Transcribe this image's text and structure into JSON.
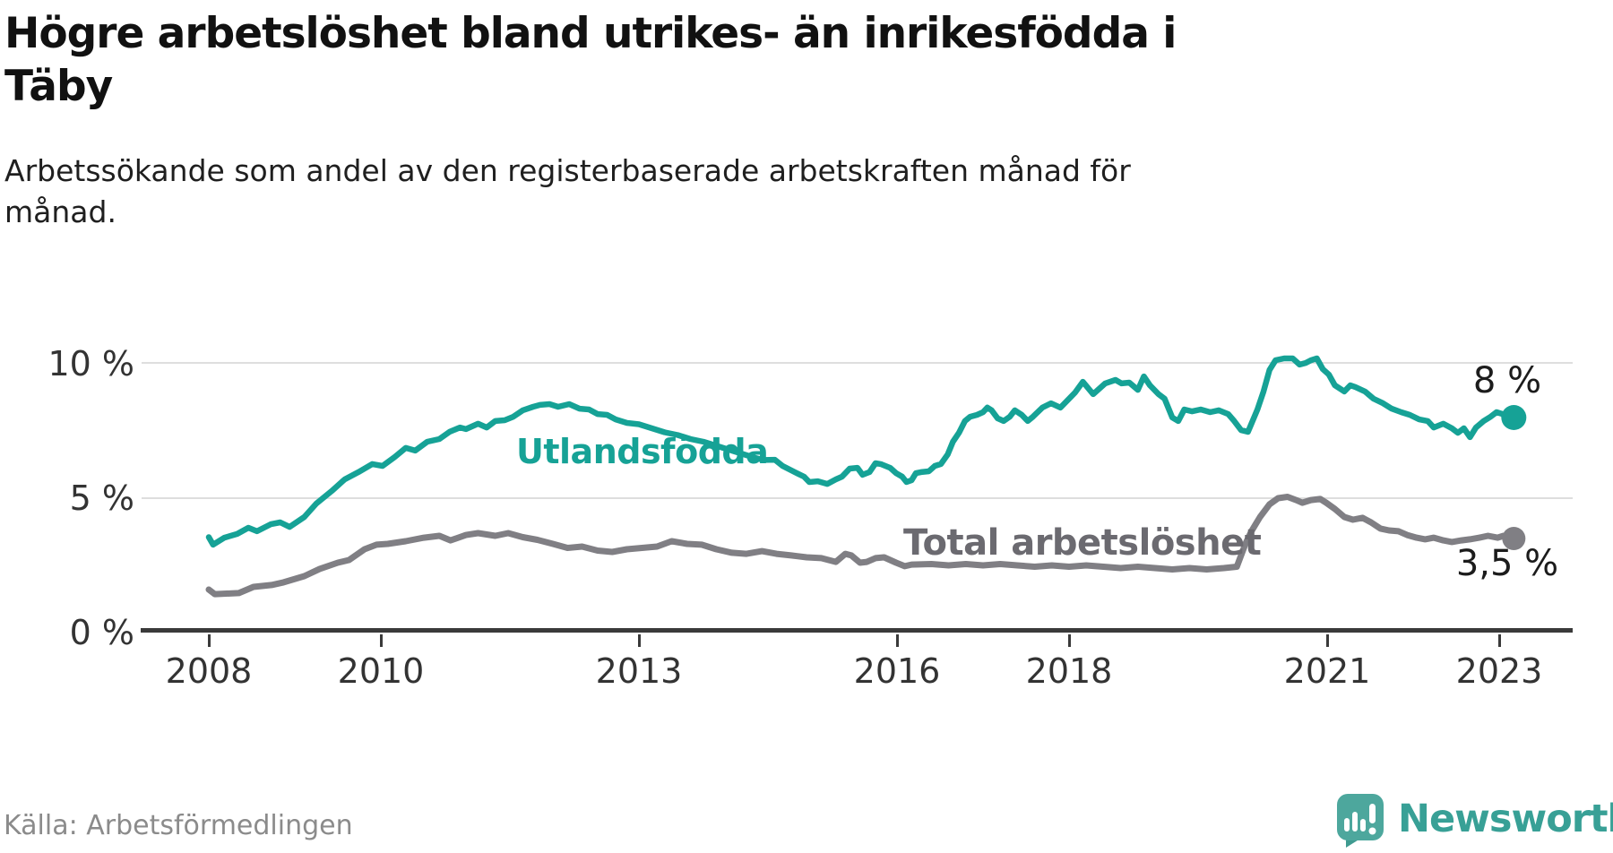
{
  "header": {
    "title_lines": [
      "Högre arbetslöshet bland utrikes- än inrikesfödda i",
      "Täby"
    ],
    "subtitle_lines": [
      "Arbetssökande som andel av den registerbaserade arbetskraften månad för",
      "månad."
    ]
  },
  "footer": {
    "source": "Källa: Arbetsförmedlingen",
    "brand": "Newsworthy",
    "brand_color": "#38a096",
    "brand_icon_color": "#4da79d"
  },
  "chart_data": {
    "type": "line",
    "unit": "%",
    "grid": "horizontal-on",
    "legend_position": "inline-labels",
    "x_axis": {
      "range_years": [
        2007.2,
        2023.9
      ],
      "ticks": [
        {
          "t": 2008,
          "label": "2008"
        },
        {
          "t": 2010,
          "label": "2010"
        },
        {
          "t": 2013,
          "label": "2013"
        },
        {
          "t": 2016,
          "label": "2016"
        },
        {
          "t": 2018,
          "label": "2018"
        },
        {
          "t": 2021,
          "label": "2021"
        },
        {
          "t": 2023,
          "label": "2023"
        }
      ]
    },
    "y_axis": {
      "range": [
        0,
        10.5
      ],
      "ticks": [
        {
          "v": 10,
          "label": "10 %"
        },
        {
          "v": 5,
          "label": "5 %"
        },
        {
          "v": 0,
          "label": "0 %"
        }
      ]
    },
    "series": [
      {
        "name": "Utlandsfödda",
        "color": "#16a296",
        "end_label": "8 %",
        "end_value": 8.0,
        "points": [
          [
            2008.0,
            3.55
          ],
          [
            2008.05,
            3.27
          ],
          [
            2008.18,
            3.53
          ],
          [
            2008.33,
            3.67
          ],
          [
            2008.46,
            3.9
          ],
          [
            2008.56,
            3.77
          ],
          [
            2008.72,
            4.03
          ],
          [
            2008.83,
            4.1
          ],
          [
            2008.94,
            3.93
          ],
          [
            2009.11,
            4.3
          ],
          [
            2009.25,
            4.8
          ],
          [
            2009.43,
            5.27
          ],
          [
            2009.58,
            5.7
          ],
          [
            2009.74,
            5.97
          ],
          [
            2009.9,
            6.27
          ],
          [
            2010.02,
            6.2
          ],
          [
            2010.16,
            6.53
          ],
          [
            2010.29,
            6.87
          ],
          [
            2010.4,
            6.77
          ],
          [
            2010.54,
            7.1
          ],
          [
            2010.68,
            7.2
          ],
          [
            2010.8,
            7.47
          ],
          [
            2010.92,
            7.63
          ],
          [
            2010.99,
            7.57
          ],
          [
            2011.13,
            7.77
          ],
          [
            2011.23,
            7.63
          ],
          [
            2011.33,
            7.87
          ],
          [
            2011.44,
            7.9
          ],
          [
            2011.54,
            8.03
          ],
          [
            2011.65,
            8.27
          ],
          [
            2011.77,
            8.4
          ],
          [
            2011.85,
            8.47
          ],
          [
            2011.96,
            8.5
          ],
          [
            2012.06,
            8.4
          ],
          [
            2012.19,
            8.5
          ],
          [
            2012.31,
            8.33
          ],
          [
            2012.42,
            8.3
          ],
          [
            2012.52,
            8.13
          ],
          [
            2012.63,
            8.1
          ],
          [
            2012.73,
            7.93
          ],
          [
            2012.86,
            7.8
          ],
          [
            2013.0,
            7.75
          ],
          [
            2013.15,
            7.6
          ],
          [
            2013.3,
            7.45
          ],
          [
            2013.45,
            7.35
          ],
          [
            2013.6,
            7.2
          ],
          [
            2013.75,
            7.1
          ],
          [
            2013.9,
            6.95
          ],
          [
            2014.05,
            6.8
          ],
          [
            2014.2,
            6.65
          ],
          [
            2014.35,
            6.5
          ],
          [
            2014.45,
            6.42
          ],
          [
            2014.58,
            6.43
          ],
          [
            2014.67,
            6.2
          ],
          [
            2014.81,
            5.97
          ],
          [
            2014.92,
            5.8
          ],
          [
            2014.98,
            5.6
          ],
          [
            2015.08,
            5.63
          ],
          [
            2015.19,
            5.53
          ],
          [
            2015.29,
            5.7
          ],
          [
            2015.36,
            5.8
          ],
          [
            2015.45,
            6.1
          ],
          [
            2015.54,
            6.13
          ],
          [
            2015.6,
            5.87
          ],
          [
            2015.68,
            5.97
          ],
          [
            2015.75,
            6.3
          ],
          [
            2015.81,
            6.27
          ],
          [
            2015.92,
            6.13
          ],
          [
            2015.99,
            5.93
          ],
          [
            2016.06,
            5.8
          ],
          [
            2016.11,
            5.6
          ],
          [
            2016.17,
            5.67
          ],
          [
            2016.22,
            5.93
          ],
          [
            2016.28,
            5.97
          ],
          [
            2016.37,
            6.0
          ],
          [
            2016.44,
            6.2
          ],
          [
            2016.51,
            6.27
          ],
          [
            2016.59,
            6.63
          ],
          [
            2016.65,
            7.1
          ],
          [
            2016.72,
            7.43
          ],
          [
            2016.79,
            7.87
          ],
          [
            2016.85,
            8.03
          ],
          [
            2016.93,
            8.1
          ],
          [
            2017.0,
            8.2
          ],
          [
            2017.05,
            8.37
          ],
          [
            2017.1,
            8.27
          ],
          [
            2017.17,
            7.97
          ],
          [
            2017.24,
            7.87
          ],
          [
            2017.31,
            8.03
          ],
          [
            2017.37,
            8.27
          ],
          [
            2017.45,
            8.1
          ],
          [
            2017.52,
            7.87
          ],
          [
            2017.58,
            8.03
          ],
          [
            2017.69,
            8.37
          ],
          [
            2017.79,
            8.53
          ],
          [
            2017.9,
            8.37
          ],
          [
            2017.97,
            8.6
          ],
          [
            2018.07,
            8.93
          ],
          [
            2018.16,
            9.33
          ],
          [
            2018.28,
            8.87
          ],
          [
            2018.42,
            9.27
          ],
          [
            2018.54,
            9.4
          ],
          [
            2018.61,
            9.27
          ],
          [
            2018.7,
            9.3
          ],
          [
            2018.8,
            9.03
          ],
          [
            2018.87,
            9.53
          ],
          [
            2018.94,
            9.2
          ],
          [
            2019.04,
            8.87
          ],
          [
            2019.11,
            8.7
          ],
          [
            2019.2,
            8.0
          ],
          [
            2019.27,
            7.87
          ],
          [
            2019.34,
            8.3
          ],
          [
            2019.43,
            8.23
          ],
          [
            2019.53,
            8.3
          ],
          [
            2019.64,
            8.2
          ],
          [
            2019.74,
            8.27
          ],
          [
            2019.85,
            8.13
          ],
          [
            2019.92,
            7.87
          ],
          [
            2020.0,
            7.53
          ],
          [
            2020.08,
            7.47
          ],
          [
            2020.19,
            8.3
          ],
          [
            2020.26,
            8.97
          ],
          [
            2020.33,
            9.77
          ],
          [
            2020.4,
            10.13
          ],
          [
            2020.5,
            10.2
          ],
          [
            2020.6,
            10.2
          ],
          [
            2020.68,
            9.97
          ],
          [
            2020.75,
            10.03
          ],
          [
            2020.81,
            10.13
          ],
          [
            2020.88,
            10.2
          ],
          [
            2020.95,
            9.8
          ],
          [
            2021.02,
            9.6
          ],
          [
            2021.09,
            9.2
          ],
          [
            2021.2,
            8.97
          ],
          [
            2021.27,
            9.2
          ],
          [
            2021.33,
            9.13
          ],
          [
            2021.44,
            8.97
          ],
          [
            2021.54,
            8.7
          ],
          [
            2021.65,
            8.53
          ],
          [
            2021.75,
            8.33
          ],
          [
            2021.86,
            8.2
          ],
          [
            2021.96,
            8.1
          ],
          [
            2022.07,
            7.93
          ],
          [
            2022.17,
            7.87
          ],
          [
            2022.24,
            7.63
          ],
          [
            2022.35,
            7.77
          ],
          [
            2022.45,
            7.6
          ],
          [
            2022.52,
            7.43
          ],
          [
            2022.59,
            7.6
          ],
          [
            2022.66,
            7.27
          ],
          [
            2022.73,
            7.63
          ],
          [
            2022.82,
            7.87
          ],
          [
            2022.9,
            8.03
          ],
          [
            2022.97,
            8.2
          ],
          [
            2023.04,
            8.13
          ],
          [
            2023.11,
            7.87
          ],
          [
            2023.17,
            8.0
          ]
        ]
      },
      {
        "name": "Total arbetslöshet",
        "color": "#807f84",
        "end_label": "3,5 %",
        "end_value": 3.5,
        "points": [
          [
            2008.0,
            1.6
          ],
          [
            2008.07,
            1.43
          ],
          [
            2008.35,
            1.47
          ],
          [
            2008.52,
            1.7
          ],
          [
            2008.73,
            1.77
          ],
          [
            2008.87,
            1.87
          ],
          [
            2009.11,
            2.1
          ],
          [
            2009.29,
            2.37
          ],
          [
            2009.5,
            2.6
          ],
          [
            2009.63,
            2.7
          ],
          [
            2009.81,
            3.1
          ],
          [
            2009.95,
            3.27
          ],
          [
            2010.08,
            3.3
          ],
          [
            2010.29,
            3.4
          ],
          [
            2010.5,
            3.53
          ],
          [
            2010.68,
            3.6
          ],
          [
            2010.81,
            3.43
          ],
          [
            2010.99,
            3.63
          ],
          [
            2011.13,
            3.7
          ],
          [
            2011.33,
            3.6
          ],
          [
            2011.48,
            3.7
          ],
          [
            2011.65,
            3.55
          ],
          [
            2011.82,
            3.45
          ],
          [
            2012.0,
            3.3
          ],
          [
            2012.17,
            3.15
          ],
          [
            2012.34,
            3.2
          ],
          [
            2012.52,
            3.05
          ],
          [
            2012.69,
            3.0
          ],
          [
            2012.86,
            3.1
          ],
          [
            2013.21,
            3.2
          ],
          [
            2013.38,
            3.4
          ],
          [
            2013.56,
            3.3
          ],
          [
            2013.73,
            3.27
          ],
          [
            2013.9,
            3.1
          ],
          [
            2014.08,
            2.97
          ],
          [
            2014.25,
            2.93
          ],
          [
            2014.43,
            3.03
          ],
          [
            2014.6,
            2.93
          ],
          [
            2014.77,
            2.87
          ],
          [
            2014.95,
            2.8
          ],
          [
            2015.12,
            2.77
          ],
          [
            2015.29,
            2.63
          ],
          [
            2015.4,
            2.93
          ],
          [
            2015.47,
            2.87
          ],
          [
            2015.57,
            2.6
          ],
          [
            2015.65,
            2.63
          ],
          [
            2015.75,
            2.77
          ],
          [
            2015.85,
            2.8
          ],
          [
            2015.92,
            2.7
          ],
          [
            2015.99,
            2.6
          ],
          [
            2016.09,
            2.47
          ],
          [
            2016.17,
            2.53
          ],
          [
            2016.4,
            2.55
          ],
          [
            2016.6,
            2.5
          ],
          [
            2016.8,
            2.55
          ],
          [
            2017.0,
            2.5
          ],
          [
            2017.2,
            2.55
          ],
          [
            2017.4,
            2.5
          ],
          [
            2017.6,
            2.45
          ],
          [
            2017.8,
            2.5
          ],
          [
            2018.0,
            2.45
          ],
          [
            2018.2,
            2.5
          ],
          [
            2018.4,
            2.45
          ],
          [
            2018.6,
            2.4
          ],
          [
            2018.8,
            2.45
          ],
          [
            2019.0,
            2.4
          ],
          [
            2019.2,
            2.35
          ],
          [
            2019.4,
            2.4
          ],
          [
            2019.6,
            2.35
          ],
          [
            2019.8,
            2.4
          ],
          [
            2019.95,
            2.45
          ],
          [
            2020.05,
            3.3
          ],
          [
            2020.12,
            3.77
          ],
          [
            2020.22,
            4.3
          ],
          [
            2020.33,
            4.77
          ],
          [
            2020.43,
            5.0
          ],
          [
            2020.54,
            5.05
          ],
          [
            2020.64,
            4.93
          ],
          [
            2020.71,
            4.83
          ],
          [
            2020.81,
            4.93
          ],
          [
            2020.92,
            4.97
          ],
          [
            2020.99,
            4.83
          ],
          [
            2021.09,
            4.6
          ],
          [
            2021.2,
            4.3
          ],
          [
            2021.3,
            4.2
          ],
          [
            2021.41,
            4.27
          ],
          [
            2021.51,
            4.1
          ],
          [
            2021.62,
            3.87
          ],
          [
            2021.72,
            3.8
          ],
          [
            2021.83,
            3.77
          ],
          [
            2021.93,
            3.63
          ],
          [
            2022.04,
            3.53
          ],
          [
            2022.14,
            3.47
          ],
          [
            2022.24,
            3.53
          ],
          [
            2022.35,
            3.43
          ],
          [
            2022.45,
            3.37
          ],
          [
            2022.56,
            3.43
          ],
          [
            2022.66,
            3.47
          ],
          [
            2022.77,
            3.53
          ],
          [
            2022.87,
            3.6
          ],
          [
            2022.98,
            3.53
          ],
          [
            2023.05,
            3.6
          ],
          [
            2023.11,
            3.55
          ],
          [
            2023.17,
            3.5
          ]
        ]
      }
    ]
  }
}
